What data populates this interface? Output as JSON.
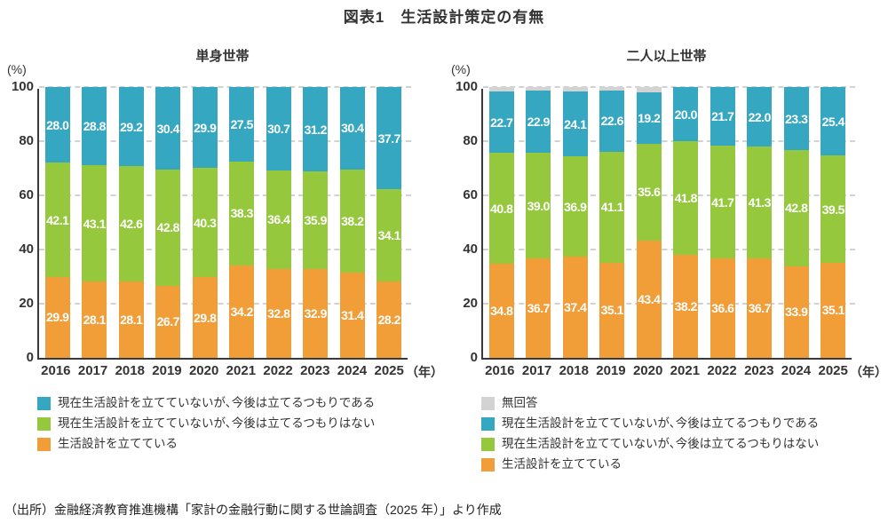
{
  "page": {
    "title": "図表1　生活設計策定の有無",
    "source": "（出所）金融経済教育推進機構「家計の金融行動に関する世論調査（2025 年）」より作成"
  },
  "chart_data": [
    {
      "type": "bar",
      "stacked": true,
      "title": "単身世帯",
      "ylabel": "(%)",
      "x_axis_suffix": "（年）",
      "ylim": [
        0,
        100
      ],
      "yticks": [
        0,
        20,
        40,
        60,
        80,
        100
      ],
      "grid": "dashed-horizontal",
      "legend_position": "bottom-left",
      "categories": [
        "2016",
        "2017",
        "2018",
        "2019",
        "2020",
        "2021",
        "2022",
        "2023",
        "2024",
        "2025"
      ],
      "series": [
        {
          "name": "生活設計を立てている",
          "color": "#F19D38",
          "show_labels": true,
          "values": [
            29.9,
            28.1,
            28.1,
            26.7,
            29.8,
            34.2,
            32.8,
            32.9,
            31.4,
            28.2
          ]
        },
        {
          "name": "現在生活設計を立てていないが､今後は立てるつもりはない",
          "color": "#95C83D",
          "show_labels": true,
          "values": [
            42.1,
            43.1,
            42.6,
            42.8,
            40.3,
            38.3,
            36.4,
            35.9,
            38.2,
            34.1
          ]
        },
        {
          "name": "現在生活設計を立てていないが､今後は立てるつもりである",
          "color": "#35A7C1",
          "show_labels": true,
          "values": [
            28.0,
            28.8,
            29.2,
            30.4,
            29.9,
            27.5,
            30.7,
            31.2,
            30.4,
            37.7
          ]
        }
      ],
      "legend": [
        {
          "label": "現在生活設計を立てていないが､今後は立てるつもりである",
          "color": "#35A7C1"
        },
        {
          "label": "現在生活設計を立てていないが､今後は立てるつもりはない",
          "color": "#95C83D"
        },
        {
          "label": "生活設計を立てている",
          "color": "#F19D38"
        }
      ]
    },
    {
      "type": "bar",
      "stacked": true,
      "title": "二人以上世帯",
      "ylabel": "(%)",
      "x_axis_suffix": "（年）",
      "ylim": [
        0,
        100
      ],
      "yticks": [
        0,
        20,
        40,
        60,
        80,
        100
      ],
      "grid": "dashed-horizontal",
      "legend_position": "bottom-left",
      "categories": [
        "2016",
        "2017",
        "2018",
        "2019",
        "2020",
        "2021",
        "2022",
        "2023",
        "2024",
        "2025"
      ],
      "series": [
        {
          "name": "生活設計を立てている",
          "color": "#F19D38",
          "show_labels": true,
          "values": [
            34.8,
            36.7,
            37.4,
            35.1,
            43.4,
            38.2,
            36.6,
            36.7,
            33.9,
            35.1
          ]
        },
        {
          "name": "現在生活設計を立てていないが､今後は立てるつもりはない",
          "color": "#95C83D",
          "show_labels": true,
          "values": [
            40.8,
            39.0,
            36.9,
            41.1,
            35.6,
            41.8,
            41.7,
            41.3,
            42.8,
            39.5
          ]
        },
        {
          "name": "現在生活設計を立てていないが､今後は立てるつもりである",
          "color": "#35A7C1",
          "show_labels": true,
          "values": [
            22.7,
            22.9,
            24.1,
            22.6,
            19.2,
            20.0,
            21.7,
            22.0,
            23.3,
            25.4
          ]
        },
        {
          "name": "無回答",
          "color": "#D3D3D3",
          "show_labels": false,
          "values_estimated": true,
          "values": [
            1.7,
            1.4,
            1.6,
            1.2,
            1.8,
            0,
            0,
            0,
            0,
            0
          ]
        }
      ],
      "legend": [
        {
          "label": "無回答",
          "color": "#D3D3D3"
        },
        {
          "label": "現在生活設計を立てていないが､今後は立てるつもりである",
          "color": "#35A7C1"
        },
        {
          "label": "現在生活設計を立てていないが､今後は立てるつもりはない",
          "color": "#95C83D"
        },
        {
          "label": "生活設計を立てている",
          "color": "#F19D38"
        }
      ]
    }
  ]
}
